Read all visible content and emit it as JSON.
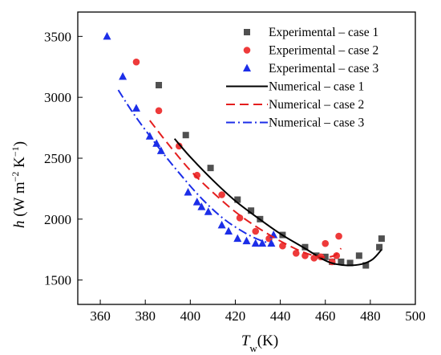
{
  "chart_data": {
    "type": "scatter",
    "xlabel": {
      "main": "T",
      "sub": "w",
      "unit": "(K)"
    },
    "ylabel": {
      "main": "h",
      "unit": " (W m",
      "exp1": "−2",
      "unit2": " K",
      "exp2": "−1",
      "close": ")"
    },
    "xlim": [
      350,
      500
    ],
    "ylim": [
      1300,
      3700
    ],
    "xticks": [
      360,
      380,
      400,
      420,
      440,
      460,
      480,
      500
    ],
    "yticks": [
      1500,
      2000,
      2500,
      3000,
      3500
    ],
    "legend_position": "top-right",
    "series": [
      {
        "name": "Experimental – case 1",
        "kind": "points",
        "marker": "square",
        "color": "#505050",
        "x": [
          386,
          398,
          409,
          421,
          427,
          431,
          441,
          451,
          456,
          460,
          463,
          467,
          471,
          475,
          478,
          484,
          485
        ],
        "y": [
          3100,
          2690,
          2420,
          2160,
          2070,
          2000,
          1870,
          1770,
          1700,
          1690,
          1650,
          1650,
          1640,
          1700,
          1620,
          1770,
          1840
        ]
      },
      {
        "name": "Experimental – case 2",
        "kind": "points",
        "marker": "circle",
        "color": "#ee3a3a",
        "x": [
          376,
          386,
          395,
          403,
          414,
          422,
          429,
          435,
          441,
          447,
          451,
          455,
          458,
          460,
          463,
          465,
          466
        ],
        "y": [
          3290,
          2890,
          2600,
          2360,
          2200,
          2010,
          1900,
          1840,
          1780,
          1720,
          1700,
          1680,
          1690,
          1800,
          1650,
          1700,
          1860
        ]
      },
      {
        "name": "Experimental – case 3",
        "kind": "points",
        "marker": "triangle",
        "color": "#1c2ee8",
        "x": [
          363,
          370,
          376,
          382,
          385,
          387,
          399,
          403,
          405,
          408,
          414,
          417,
          421,
          425,
          429,
          432,
          436,
          437
        ],
        "y": [
          3500,
          3170,
          2910,
          2680,
          2620,
          2560,
          2220,
          2140,
          2100,
          2060,
          1950,
          1900,
          1840,
          1820,
          1800,
          1800,
          1800,
          1870
        ]
      },
      {
        "name": "Numerical – case 1",
        "kind": "line",
        "dash": "solid",
        "color": "#000000",
        "x": [
          393,
          400,
          410,
          420,
          430,
          440,
          450,
          460,
          465,
          470,
          476,
          481,
          485
        ],
        "y": [
          2660,
          2510,
          2320,
          2150,
          2010,
          1880,
          1770,
          1660,
          1630,
          1620,
          1630,
          1670,
          1750
        ]
      },
      {
        "name": "Numerical – case 2",
        "kind": "line",
        "dash": "dashed",
        "color": "#e41e1e",
        "x": [
          382,
          390,
          400,
          410,
          420,
          430,
          440,
          450,
          458,
          464,
          467
        ],
        "y": [
          2810,
          2620,
          2400,
          2220,
          2060,
          1930,
          1820,
          1730,
          1690,
          1700,
          1760
        ]
      },
      {
        "name": "Numerical – case 3",
        "kind": "line",
        "dash": "dashdot",
        "color": "#1c2ee8",
        "x": [
          368,
          375,
          385,
          395,
          405,
          415,
          425,
          432,
          437
        ],
        "y": [
          3060,
          2860,
          2610,
          2380,
          2170,
          2000,
          1880,
          1820,
          1800
        ]
      }
    ]
  }
}
